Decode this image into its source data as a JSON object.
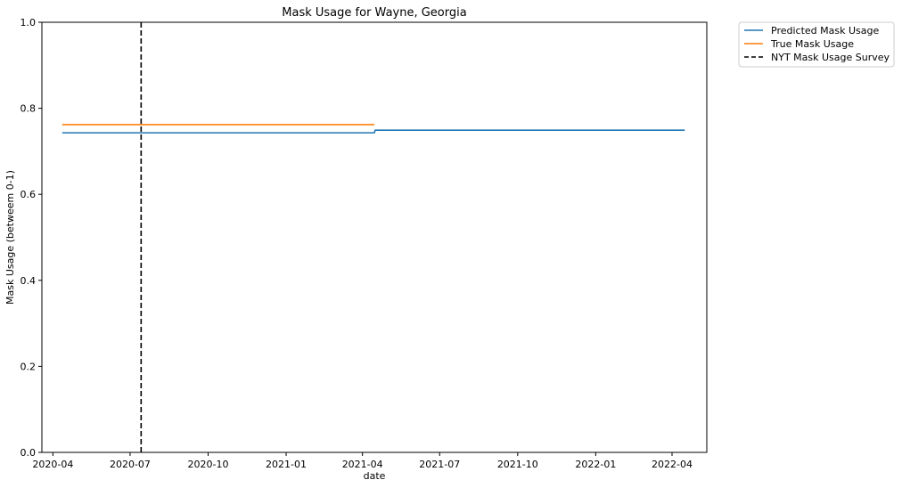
{
  "chart_data": {
    "type": "line",
    "title": "Mask Usage for Wayne, Georgia",
    "xlabel": "date",
    "ylabel": "Mask Usage (betweem 0-1)",
    "xlim": [
      "2020-03-19",
      "2022-05-12"
    ],
    "ylim": [
      0,
      1
    ],
    "x_ticks": [
      "2020-04",
      "2020-07",
      "2020-10",
      "2021-01",
      "2021-04",
      "2021-07",
      "2021-10",
      "2022-01",
      "2022-04"
    ],
    "y_ticks": [
      "0.0",
      "0.2",
      "0.4",
      "0.6",
      "0.8",
      "1.0"
    ],
    "grid": false,
    "legend_position": "outside-top-right",
    "series": [
      {
        "name": "Predicted Mask Usage",
        "color": "#1f77b4",
        "style": "solid",
        "points": [
          {
            "x": "2020-04-12",
            "y": 0.743
          },
          {
            "x": "2021-04-15",
            "y": 0.743
          },
          {
            "x": "2021-04-16",
            "y": 0.749
          },
          {
            "x": "2022-04-16",
            "y": 0.749
          }
        ]
      },
      {
        "name": "True Mask Usage",
        "color": "#ff7f0e",
        "style": "solid",
        "points": [
          {
            "x": "2020-04-12",
            "y": 0.762
          },
          {
            "x": "2021-04-15",
            "y": 0.762
          }
        ]
      },
      {
        "name": "NYT Mask Usage Survey",
        "color": "#000000",
        "style": "dashed",
        "vline_x": "2020-07-14"
      }
    ]
  }
}
